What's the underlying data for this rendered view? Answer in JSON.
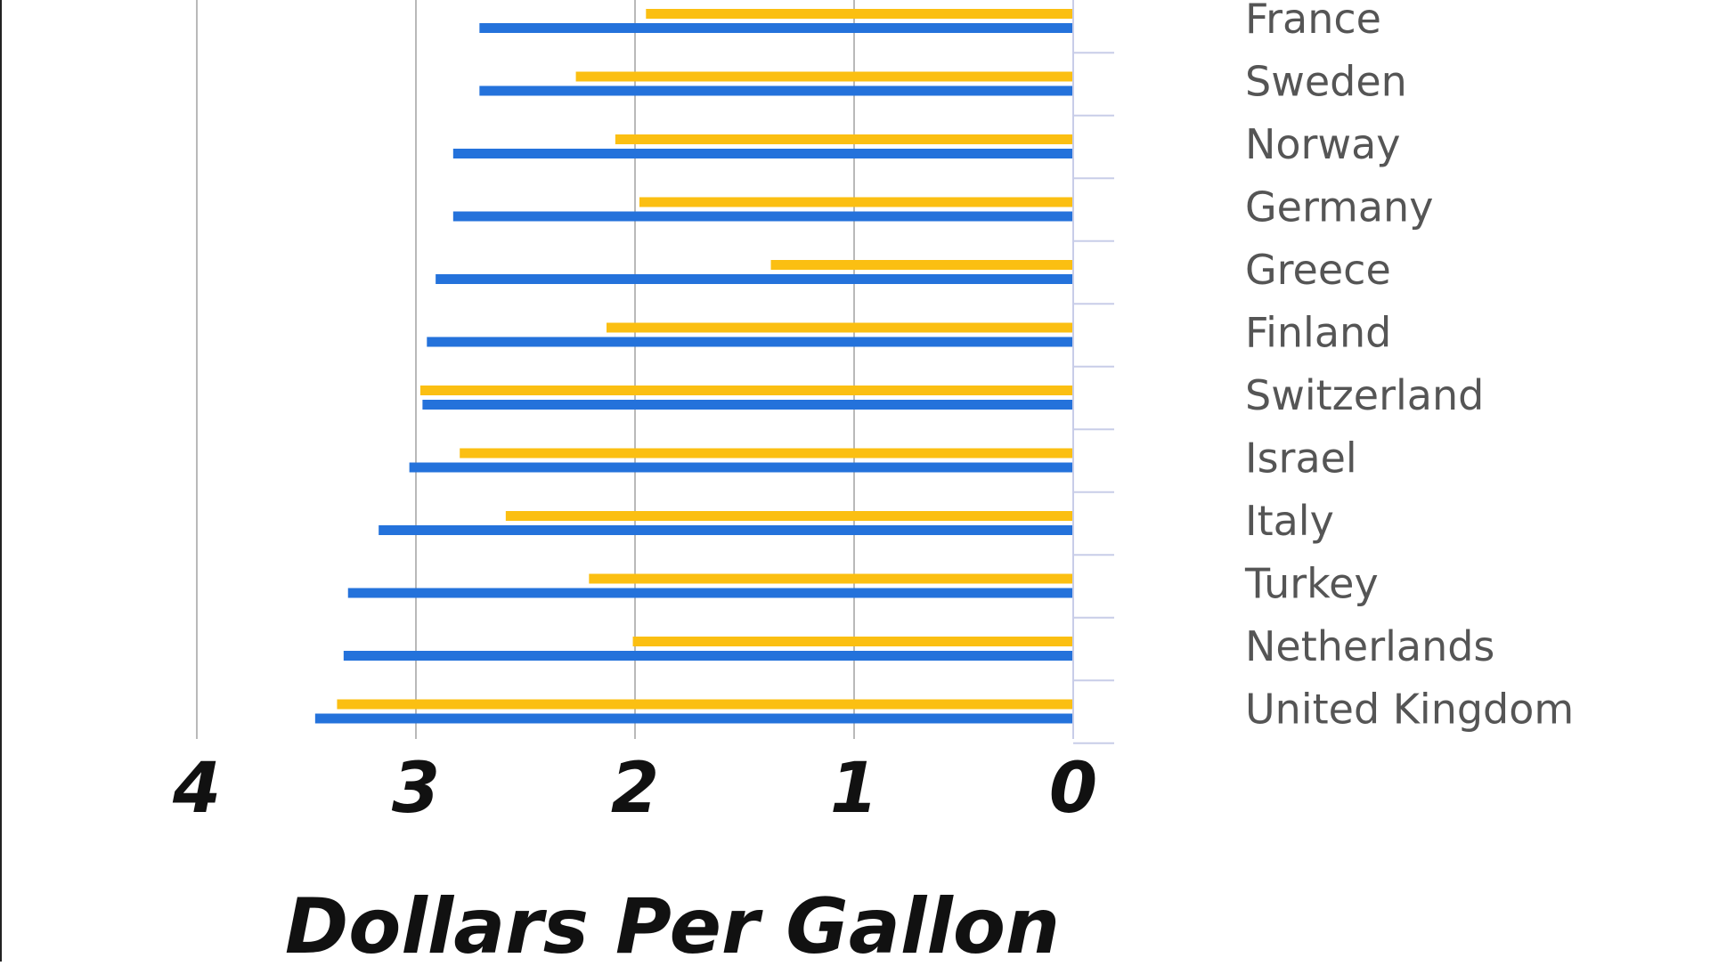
{
  "chart_data": {
    "type": "bar",
    "orientation": "horizontal",
    "x_direction": "reversed",
    "title": "",
    "xlabel": "Dollars Per Gallon",
    "ylabel": "",
    "xlim": [
      0,
      4
    ],
    "x_ticks": [
      "4",
      "3",
      "2",
      "1",
      "0"
    ],
    "grid": true,
    "legend": "none",
    "categories": [
      "France",
      "Sweden",
      "Norway",
      "Germany",
      "Greece",
      "Finland",
      "Switzerland",
      "Israel",
      "Italy",
      "Turkey",
      "Netherlands",
      "United Kingdom"
    ],
    "series": [
      {
        "color": "#fbbf12",
        "values": [
          1.95,
          2.27,
          2.09,
          1.98,
          1.38,
          2.13,
          2.98,
          2.8,
          2.59,
          2.21,
          2.01,
          3.36
        ]
      },
      {
        "color": "#2472db",
        "values": [
          2.71,
          2.71,
          2.83,
          2.83,
          2.91,
          2.95,
          2.97,
          3.03,
          3.17,
          3.31,
          3.33,
          3.46
        ]
      }
    ]
  }
}
